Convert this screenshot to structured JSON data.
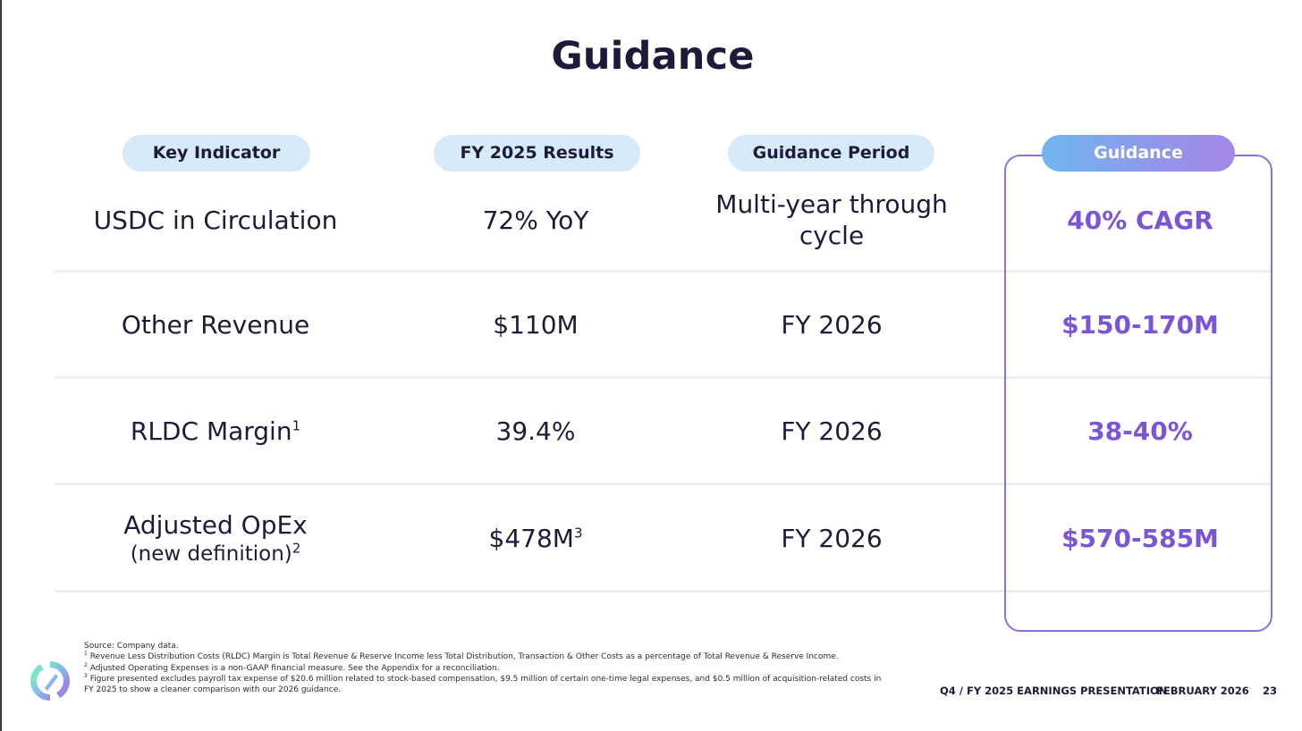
{
  "title": "Guidance",
  "headers": {
    "key_indicator": "Key Indicator",
    "fy_results": "FY 2025 Results",
    "guidance_period": "Guidance Period",
    "guidance": "Guidance"
  },
  "rows": [
    {
      "indicator": "USDC in Circulation",
      "results": "72% YoY",
      "period_line1": "Multi-year through",
      "period_line2": "cycle",
      "guidance": "40% CAGR"
    },
    {
      "indicator": "Other Revenue",
      "results": "$110M",
      "period": "FY 2026",
      "guidance": "$150-170M"
    },
    {
      "indicator": "RLDC Margin",
      "indicator_sup": "1",
      "results": "39.4%",
      "period": "FY 2026",
      "guidance": "38-40%"
    },
    {
      "indicator": "Adjusted OpEx",
      "indicator_sub": "(new definition)",
      "indicator_sub_sup": "2",
      "results": "$478M",
      "results_sup": "3",
      "period": "FY 2026",
      "guidance": "$570-585M"
    }
  ],
  "footnotes": {
    "source": "Source: Company data.",
    "n1_num": "1",
    "n1": "Revenue Less Distribution Costs (RLDC) Margin is Total Revenue & Reserve Income less Total Distribution, Transaction & Other Costs as a percentage of Total Revenue & Reserve Income.",
    "n2_num": "2",
    "n2": "Adjusted Operating Expenses is a non-GAAP financial measure. See the Appendix for a reconciliation.",
    "n3_num": "3",
    "n3": "Figure presented excludes payroll tax expense of $20.6 million related to stock-based compensation, $9.5 million of certain one-time legal expenses, and $0.5 million of acquisition-related costs in FY 2025 to show a cleaner comparison with our 2026 guidance."
  },
  "footer": {
    "presentation": "Q4 / FY 2025 EARNINGS PRESENTATION",
    "date": "FEBRUARY 2026",
    "page": "23"
  },
  "colors": {
    "title": "#1e1b3a",
    "header_pill": "#d6eaf9",
    "guidance_accent": "#7b55d6",
    "guidance_border": "#8f6fdc"
  },
  "icons": [
    "circle-logo-icon"
  ]
}
